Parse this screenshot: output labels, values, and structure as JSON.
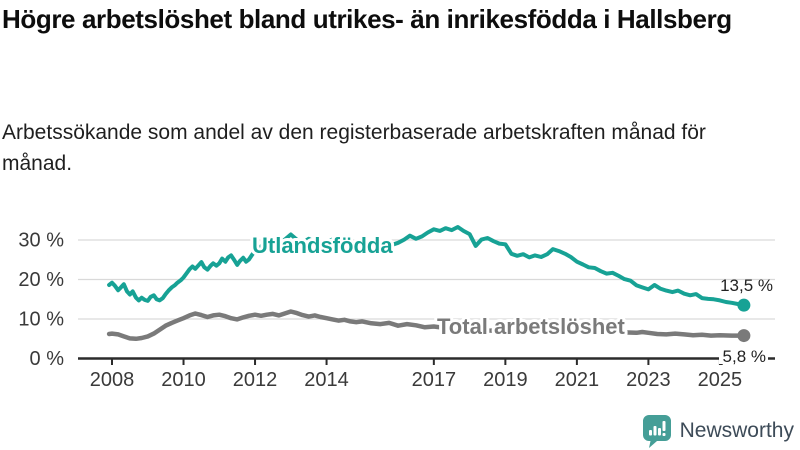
{
  "chart_data": {
    "type": "line",
    "title": "Högre arbetslöshet bland utrikes- än inrikesfödda i Hallsberg",
    "subtitle": "Arbetssökande som andel av den registerbaserade arbetskraften månad för månad.",
    "xlabel": "",
    "ylabel": "",
    "ylim": [
      0,
      35
    ],
    "xlim": [
      2007.9,
      2026.3
    ],
    "grid": "horizontal-only",
    "legend_position": "inline-labels",
    "x_tick_labels": [
      "2008",
      "2010",
      "2012",
      "2014",
      "2017",
      "2019",
      "2021",
      "2023",
      "2025"
    ],
    "x_tick_years": [
      2008,
      2010,
      2012,
      2014,
      2017,
      2019,
      2021,
      2023,
      2025
    ],
    "y_tick_labels": [
      "0 %",
      "10 %",
      "20 %",
      "30 %"
    ],
    "y_tick_values": [
      0,
      10,
      20,
      30
    ],
    "series": [
      {
        "name": "Utlandsfödda",
        "color": "#17a295",
        "end_label": "13,5 %",
        "end_value": 13.5,
        "points": [
          [
            2007.92,
            18.6
          ],
          [
            2008.0,
            19.2
          ],
          [
            2008.08,
            18.4
          ],
          [
            2008.17,
            17.3
          ],
          [
            2008.25,
            18.0
          ],
          [
            2008.33,
            18.8
          ],
          [
            2008.42,
            17.0
          ],
          [
            2008.5,
            16.2
          ],
          [
            2008.58,
            17.0
          ],
          [
            2008.67,
            15.4
          ],
          [
            2008.75,
            14.7
          ],
          [
            2008.83,
            15.4
          ],
          [
            2008.92,
            14.8
          ],
          [
            2009.0,
            14.6
          ],
          [
            2009.08,
            15.6
          ],
          [
            2009.17,
            16.0
          ],
          [
            2009.25,
            15.0
          ],
          [
            2009.33,
            14.7
          ],
          [
            2009.42,
            15.3
          ],
          [
            2009.5,
            16.3
          ],
          [
            2009.58,
            17.2
          ],
          [
            2009.67,
            18.0
          ],
          [
            2009.75,
            18.5
          ],
          [
            2009.83,
            19.2
          ],
          [
            2009.92,
            19.8
          ],
          [
            2010.0,
            20.5
          ],
          [
            2010.08,
            21.5
          ],
          [
            2010.17,
            22.6
          ],
          [
            2010.25,
            23.3
          ],
          [
            2010.33,
            22.7
          ],
          [
            2010.42,
            23.6
          ],
          [
            2010.5,
            24.4
          ],
          [
            2010.58,
            23.1
          ],
          [
            2010.67,
            22.5
          ],
          [
            2010.75,
            23.4
          ],
          [
            2010.83,
            24.1
          ],
          [
            2010.92,
            23.5
          ],
          [
            2011.0,
            24.1
          ],
          [
            2011.08,
            25.3
          ],
          [
            2011.17,
            24.5
          ],
          [
            2011.25,
            25.6
          ],
          [
            2011.33,
            26.1
          ],
          [
            2011.42,
            24.9
          ],
          [
            2011.5,
            23.7
          ],
          [
            2011.58,
            24.7
          ],
          [
            2011.67,
            25.5
          ],
          [
            2011.75,
            24.5
          ],
          [
            2011.83,
            25.1
          ],
          [
            2011.92,
            26.3
          ],
          [
            2012.0,
            27.2
          ],
          [
            2012.17,
            28.4
          ],
          [
            2012.33,
            29.8
          ],
          [
            2012.5,
            30.4
          ],
          [
            2012.67,
            29.2
          ],
          [
            2012.83,
            30.1
          ],
          [
            2013.0,
            31.4
          ],
          [
            2013.17,
            30.1
          ],
          [
            2013.33,
            29.3
          ],
          [
            2013.5,
            30.3
          ],
          [
            2013.67,
            29.5
          ],
          [
            2013.83,
            28.9
          ],
          [
            2014.0,
            29.7
          ],
          [
            2014.25,
            30.3
          ],
          [
            2014.5,
            29.4
          ],
          [
            2014.75,
            28.7
          ],
          [
            2015.0,
            29.3
          ],
          [
            2015.25,
            28.5
          ],
          [
            2015.5,
            28.9
          ],
          [
            2015.75,
            28.5
          ],
          [
            2016.0,
            29.3
          ],
          [
            2016.17,
            30.1
          ],
          [
            2016.33,
            31.1
          ],
          [
            2016.5,
            30.3
          ],
          [
            2016.67,
            30.9
          ],
          [
            2016.83,
            31.9
          ],
          [
            2017.0,
            32.7
          ],
          [
            2017.17,
            32.3
          ],
          [
            2017.33,
            33.0
          ],
          [
            2017.5,
            32.5
          ],
          [
            2017.67,
            33.3
          ],
          [
            2017.83,
            32.3
          ],
          [
            2018.0,
            31.5
          ],
          [
            2018.17,
            28.5
          ],
          [
            2018.33,
            30.1
          ],
          [
            2018.5,
            30.5
          ],
          [
            2018.67,
            29.7
          ],
          [
            2018.83,
            29.1
          ],
          [
            2019.0,
            28.9
          ],
          [
            2019.17,
            26.5
          ],
          [
            2019.33,
            26.0
          ],
          [
            2019.5,
            26.4
          ],
          [
            2019.67,
            25.6
          ],
          [
            2019.83,
            26.1
          ],
          [
            2020.0,
            25.7
          ],
          [
            2020.17,
            26.4
          ],
          [
            2020.33,
            27.7
          ],
          [
            2020.5,
            27.2
          ],
          [
            2020.67,
            26.5
          ],
          [
            2020.83,
            25.7
          ],
          [
            2021.0,
            24.5
          ],
          [
            2021.17,
            23.8
          ],
          [
            2021.33,
            23.1
          ],
          [
            2021.5,
            22.9
          ],
          [
            2021.67,
            22.1
          ],
          [
            2021.83,
            21.5
          ],
          [
            2022.0,
            21.7
          ],
          [
            2022.17,
            20.9
          ],
          [
            2022.33,
            20.1
          ],
          [
            2022.5,
            19.7
          ],
          [
            2022.67,
            18.5
          ],
          [
            2022.83,
            18.0
          ],
          [
            2023.0,
            17.5
          ],
          [
            2023.17,
            18.6
          ],
          [
            2023.33,
            17.7
          ],
          [
            2023.5,
            17.2
          ],
          [
            2023.67,
            16.8
          ],
          [
            2023.83,
            17.2
          ],
          [
            2024.0,
            16.4
          ],
          [
            2024.17,
            16.0
          ],
          [
            2024.33,
            16.3
          ],
          [
            2024.5,
            15.3
          ],
          [
            2024.67,
            15.1
          ],
          [
            2024.83,
            15.0
          ],
          [
            2025.0,
            14.7
          ],
          [
            2025.17,
            14.3
          ],
          [
            2025.33,
            14.1
          ],
          [
            2025.5,
            13.8
          ],
          [
            2025.67,
            13.5
          ]
        ]
      },
      {
        "name": "Total arbetslöshet",
        "color": "#7a7a7a",
        "end_label": "5,8 %",
        "end_value": 5.8,
        "points": [
          [
            2007.92,
            6.2
          ],
          [
            2008.0,
            6.3
          ],
          [
            2008.17,
            6.1
          ],
          [
            2008.33,
            5.6
          ],
          [
            2008.5,
            5.1
          ],
          [
            2008.67,
            5.0
          ],
          [
            2008.83,
            5.2
          ],
          [
            2009.0,
            5.6
          ],
          [
            2009.17,
            6.3
          ],
          [
            2009.33,
            7.3
          ],
          [
            2009.5,
            8.3
          ],
          [
            2009.67,
            9.0
          ],
          [
            2009.83,
            9.6
          ],
          [
            2010.0,
            10.2
          ],
          [
            2010.17,
            10.9
          ],
          [
            2010.33,
            11.4
          ],
          [
            2010.5,
            11.0
          ],
          [
            2010.67,
            10.5
          ],
          [
            2010.83,
            10.9
          ],
          [
            2011.0,
            11.1
          ],
          [
            2011.17,
            10.7
          ],
          [
            2011.33,
            10.2
          ],
          [
            2011.5,
            9.9
          ],
          [
            2011.67,
            10.4
          ],
          [
            2011.83,
            10.8
          ],
          [
            2012.0,
            11.1
          ],
          [
            2012.17,
            10.8
          ],
          [
            2012.33,
            11.1
          ],
          [
            2012.5,
            11.3
          ],
          [
            2012.67,
            10.9
          ],
          [
            2012.83,
            11.4
          ],
          [
            2013.0,
            11.9
          ],
          [
            2013.17,
            11.5
          ],
          [
            2013.33,
            11.0
          ],
          [
            2013.5,
            10.6
          ],
          [
            2013.67,
            10.9
          ],
          [
            2013.83,
            10.5
          ],
          [
            2014.0,
            10.2
          ],
          [
            2014.17,
            9.9
          ],
          [
            2014.33,
            9.6
          ],
          [
            2014.5,
            9.8
          ],
          [
            2014.67,
            9.4
          ],
          [
            2014.83,
            9.2
          ],
          [
            2015.0,
            9.4
          ],
          [
            2015.25,
            8.9
          ],
          [
            2015.5,
            8.7
          ],
          [
            2015.75,
            9.0
          ],
          [
            2016.0,
            8.3
          ],
          [
            2016.25,
            8.7
          ],
          [
            2016.5,
            8.4
          ],
          [
            2016.75,
            7.9
          ],
          [
            2017.0,
            8.1
          ],
          [
            2017.25,
            7.8
          ],
          [
            2017.5,
            7.6
          ],
          [
            2017.75,
            7.4
          ],
          [
            2018.0,
            7.3
          ],
          [
            2018.5,
            7.1
          ],
          [
            2019.0,
            7.0
          ],
          [
            2019.5,
            6.9
          ],
          [
            2020.0,
            7.1
          ],
          [
            2020.33,
            7.9
          ],
          [
            2020.67,
            7.7
          ],
          [
            2021.0,
            7.4
          ],
          [
            2021.5,
            7.1
          ],
          [
            2022.0,
            6.8
          ],
          [
            2022.33,
            6.6
          ],
          [
            2022.67,
            6.5
          ],
          [
            2022.83,
            6.7
          ],
          [
            2023.0,
            6.5
          ],
          [
            2023.25,
            6.2
          ],
          [
            2023.5,
            6.1
          ],
          [
            2023.75,
            6.3
          ],
          [
            2024.0,
            6.1
          ],
          [
            2024.25,
            5.9
          ],
          [
            2024.5,
            6.0
          ],
          [
            2024.75,
            5.8
          ],
          [
            2025.0,
            5.9
          ],
          [
            2025.33,
            5.8
          ],
          [
            2025.67,
            5.8
          ]
        ]
      }
    ],
    "colors": {
      "axis": "#2b2b2b",
      "grid": "#d9d9d9",
      "tick_text": "#3a3a3a",
      "value_label_text": "#222222"
    }
  },
  "logo": {
    "label": "Newsworthy",
    "icon_color": "#459e97",
    "text_color": "#3d4b58"
  }
}
